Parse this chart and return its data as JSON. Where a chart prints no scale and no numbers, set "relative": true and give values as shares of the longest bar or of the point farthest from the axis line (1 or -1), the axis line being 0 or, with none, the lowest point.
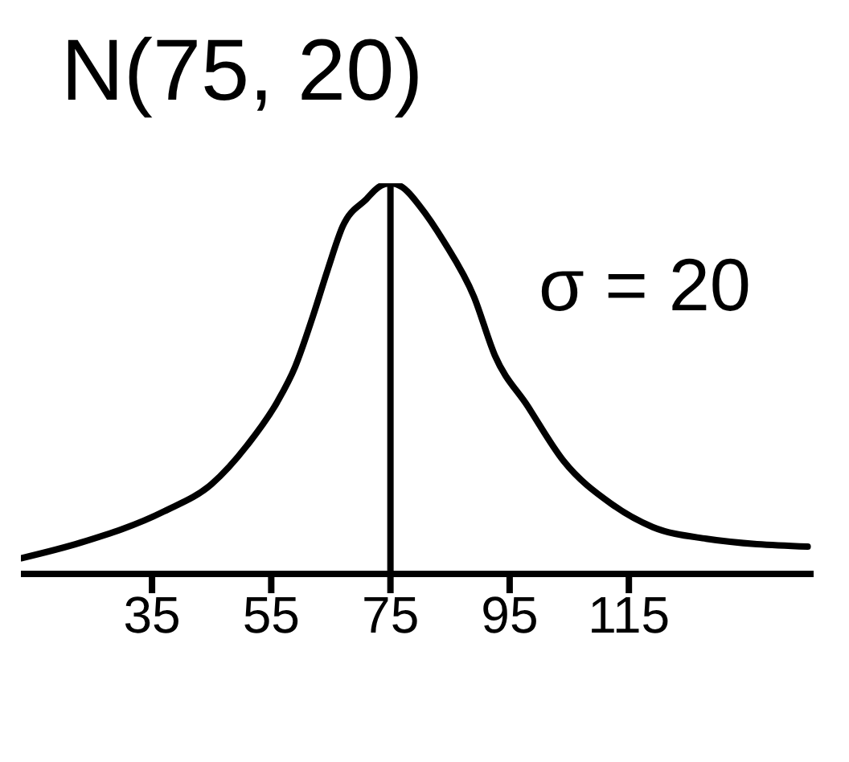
{
  "chart_data": {
    "type": "line",
    "title": "N(75, 20)",
    "relative": true,
    "x": [
      13,
      23,
      37,
      45,
      51,
      56,
      59,
      62,
      64.5,
      67,
      71,
      73,
      75,
      77,
      80,
      84,
      89,
      92.5,
      98,
      104,
      112,
      119,
      128,
      145
    ],
    "series": [
      {
        "color": "#000000",
        "values": [
          0.04,
          0.08,
          0.16,
          0.23,
          0.33,
          0.44,
          0.53,
          0.66,
          0.78,
          0.89,
          0.96,
          0.99,
          1.0,
          0.99,
          0.94,
          0.85,
          0.71,
          0.56,
          0.43,
          0.29,
          0.18,
          0.12,
          0.09,
          0.07
        ]
      }
    ],
    "xlim": [
      13,
      146
    ],
    "xticks": [
      35,
      55,
      75,
      95,
      115
    ],
    "ref_lines": [
      {
        "axis": "x",
        "value": 75,
        "color": "#000000"
      }
    ],
    "annotations": [
      "σ = 20"
    ],
    "tick_labels": "x"
  }
}
